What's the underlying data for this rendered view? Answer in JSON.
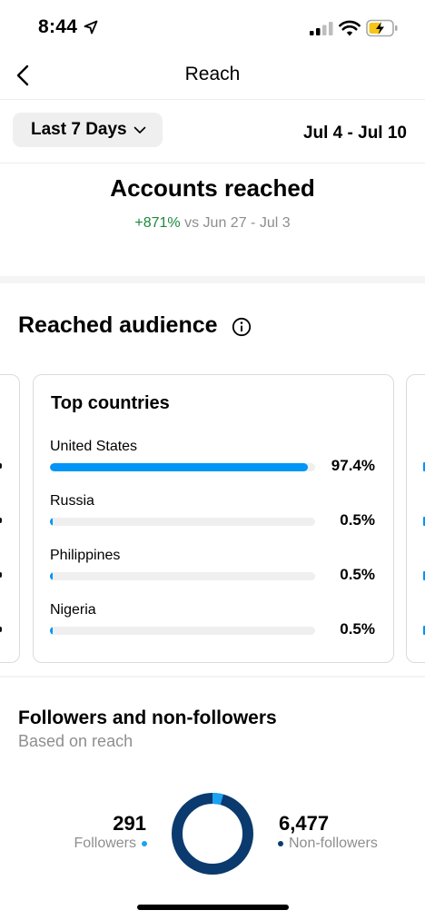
{
  "status_bar": {
    "time": "8:44",
    "icons": [
      "location-arrow-icon",
      "signal-icon",
      "wifi-icon",
      "battery-charging-icon"
    ]
  },
  "nav": {
    "title": "Reach",
    "back_icon": "chevron-left-icon"
  },
  "date_filter": {
    "selected": "Last 7 Days",
    "range": "Jul 4 - Jul 10"
  },
  "accounts_reached": {
    "title": "Accounts reached",
    "change": "+871%",
    "compare_text": "vs Jun 27 - Jul 3",
    "change_color": "#1a8a3c"
  },
  "reached_audience": {
    "title": "Reached audience",
    "top_countries": {
      "title": "Top countries",
      "items": [
        {
          "name": "United States",
          "percent": "97.4%",
          "value": 97.4
        },
        {
          "name": "Russia",
          "percent": "0.5%",
          "value": 0.5
        },
        {
          "name": "Philippines",
          "percent": "0.5%",
          "value": 0.5
        },
        {
          "name": "Nigeria",
          "percent": "0.5%",
          "value": 0.5
        }
      ]
    }
  },
  "followers_section": {
    "title": "Followers and non-followers",
    "subtitle": "Based on reach",
    "followers": {
      "count": "291",
      "label": "Followers",
      "value": 291,
      "color": "#1da1f2"
    },
    "non_followers": {
      "count": "6,477",
      "label": "Non-followers",
      "value": 6477,
      "color": "#0b3a6e"
    }
  },
  "colors": {
    "accent": "#0095f6",
    "track": "#efefef",
    "muted": "#8e8e8e"
  }
}
